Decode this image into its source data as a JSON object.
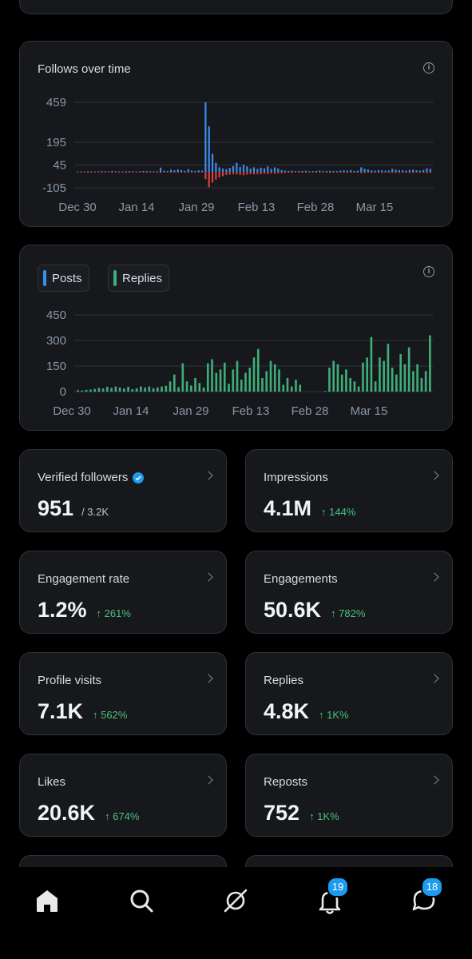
{
  "top_axis": {
    "ticks": [
      "Dec 30",
      "Jan 14",
      "Jan 29",
      "Feb 13",
      "Feb 28",
      "Mar 15"
    ]
  },
  "follows_chart": {
    "title": "Follows over time"
  },
  "posts_chart": {
    "legend": [
      {
        "label": "Posts",
        "color": "#3b8ef0"
      },
      {
        "label": "Replies",
        "color": "#3fae78"
      }
    ]
  },
  "chart_data": [
    {
      "type": "bar",
      "title": "Follows over time",
      "y_ticks": [
        "459",
        "195",
        "45",
        "-105"
      ],
      "x_ticks": [
        "Dec 30",
        "Jan 14",
        "Jan 29",
        "Feb 13",
        "Feb 28",
        "Mar 15"
      ],
      "ylim": [
        -105,
        459
      ],
      "grid": true,
      "series": [
        {
          "name": "",
          "color": "#3b8ef0",
          "values": [
            2,
            3,
            2,
            4,
            3,
            2,
            3,
            5,
            4,
            3,
            6,
            4,
            3,
            2,
            4,
            5,
            4,
            3,
            4,
            6,
            5,
            4,
            3,
            4,
            28,
            8,
            6,
            14,
            10,
            16,
            12,
            7,
            18,
            9,
            6,
            10,
            8,
            459,
            300,
            120,
            60,
            30,
            22,
            18,
            26,
            38,
            60,
            32,
            48,
            36,
            22,
            30,
            20,
            28,
            24,
            36,
            20,
            30,
            22,
            12,
            8,
            6,
            8,
            5,
            6,
            6,
            7,
            4,
            5,
            6,
            8,
            5,
            6,
            7,
            6,
            5,
            8,
            10,
            9,
            12,
            6,
            8,
            30,
            20,
            16,
            10,
            8,
            12,
            10,
            8,
            9,
            20,
            14,
            12,
            10,
            8,
            12,
            14,
            10,
            8,
            12,
            24,
            20
          ]
        },
        {
          "name": "",
          "color": "#e0403c",
          "values": [
            -2,
            -2,
            -1,
            -2,
            -2,
            -1,
            -2,
            -3,
            -2,
            -2,
            -3,
            -2,
            -2,
            -1,
            -2,
            -3,
            -2,
            -2,
            -2,
            -3,
            -3,
            -2,
            -2,
            -2,
            -6,
            -4,
            -3,
            -5,
            -4,
            -5,
            -4,
            -3,
            -5,
            -4,
            -3,
            -4,
            -3,
            -48,
            -100,
            -70,
            -50,
            -36,
            -28,
            -20,
            -18,
            -15,
            -16,
            -20,
            -22,
            -18,
            -15,
            -16,
            -14,
            -15,
            -12,
            -14,
            -10,
            -12,
            -10,
            -8,
            -6,
            -5,
            -6,
            -5,
            -5,
            -5,
            -5,
            -4,
            -4,
            -5,
            -5,
            -4,
            -5,
            -5,
            -5,
            -4,
            -5,
            -6,
            -6,
            -6,
            -5,
            -5,
            -8,
            -7,
            -6,
            -6,
            -5,
            -6,
            -6,
            -5,
            -5,
            -6,
            -6,
            -6,
            -5,
            -5,
            -6,
            -6,
            -5,
            -5,
            -6,
            -8,
            -7
          ]
        }
      ]
    },
    {
      "type": "bar",
      "title": "",
      "y_ticks": [
        "450",
        "300",
        "150",
        "0"
      ],
      "x_ticks": [
        "Dec 30",
        "Jan 14",
        "Jan 29",
        "Feb 13",
        "Feb 28",
        "Mar 15"
      ],
      "ylim": [
        0,
        450
      ],
      "grid": true,
      "legend": "top-left",
      "series": [
        {
          "name": "Posts",
          "color": "#3b8ef0",
          "values": [
            2,
            2,
            3,
            3,
            2,
            3,
            4,
            3,
            4,
            3,
            4,
            3,
            5,
            4,
            6,
            5,
            8,
            10,
            10,
            12,
            10,
            14,
            10,
            14,
            16,
            12,
            18,
            14,
            12,
            16,
            12,
            14,
            16,
            12,
            14,
            16,
            14,
            12,
            16,
            14,
            16,
            18,
            12,
            14,
            10,
            10,
            8,
            8,
            6,
            6,
            0,
            0,
            0,
            0,
            0,
            0,
            0,
            0,
            0,
            4,
            6,
            6,
            8,
            6,
            8,
            6,
            8,
            6,
            8,
            12,
            14,
            10,
            14,
            16,
            12,
            14,
            16,
            12,
            10,
            12,
            14,
            10,
            12,
            14,
            16
          ]
        },
        {
          "name": "Replies",
          "color": "#3fae78",
          "values": [
            8,
            6,
            10,
            12,
            16,
            22,
            18,
            28,
            22,
            30,
            24,
            18,
            28,
            14,
            20,
            30,
            24,
            30,
            20,
            24,
            30,
            34,
            60,
            100,
            26,
            166,
            60,
            36,
            80,
            50,
            24,
            166,
            190,
            110,
            130,
            170,
            46,
            130,
            180,
            70,
            110,
            140,
            200,
            250,
            80,
            120,
            180,
            160,
            130,
            40,
            80,
            30,
            70,
            40,
            0,
            0,
            0,
            0,
            0,
            0,
            140,
            180,
            160,
            100,
            130,
            80,
            60,
            30,
            170,
            200,
            320,
            60,
            200,
            180,
            280,
            140,
            100,
            220,
            160,
            260,
            120,
            160,
            80,
            120,
            330
          ]
        }
      ]
    }
  ],
  "stats": [
    {
      "label": "Verified followers",
      "value": "951",
      "sub": "/ 3.2K",
      "delta": "",
      "verified": true
    },
    {
      "label": "Impressions",
      "value": "4.1M",
      "sub": "",
      "delta": "↑ 144%"
    },
    {
      "label": "Engagement rate",
      "value": "1.2%",
      "sub": "",
      "delta": "↑ 261%"
    },
    {
      "label": "Engagements",
      "value": "50.6K",
      "sub": "",
      "delta": "↑ 782%"
    },
    {
      "label": "Profile visits",
      "value": "7.1K",
      "sub": "",
      "delta": "↑ 562%"
    },
    {
      "label": "Replies",
      "value": "4.8K",
      "sub": "",
      "delta": "↑ 1K%"
    },
    {
      "label": "Likes",
      "value": "20.6K",
      "sub": "",
      "delta": "↑ 674%"
    },
    {
      "label": "Reposts",
      "value": "752",
      "sub": "",
      "delta": "↑ 1K%"
    }
  ],
  "tabbar": {
    "items": [
      {
        "name": "home",
        "icon": "home-icon",
        "badge": ""
      },
      {
        "name": "search",
        "icon": "search-icon",
        "badge": ""
      },
      {
        "name": "grok",
        "icon": "grok-icon",
        "badge": ""
      },
      {
        "name": "notifications",
        "icon": "bell-icon",
        "badge": "19"
      },
      {
        "name": "messages",
        "icon": "messages-icon",
        "badge": "18"
      }
    ]
  }
}
